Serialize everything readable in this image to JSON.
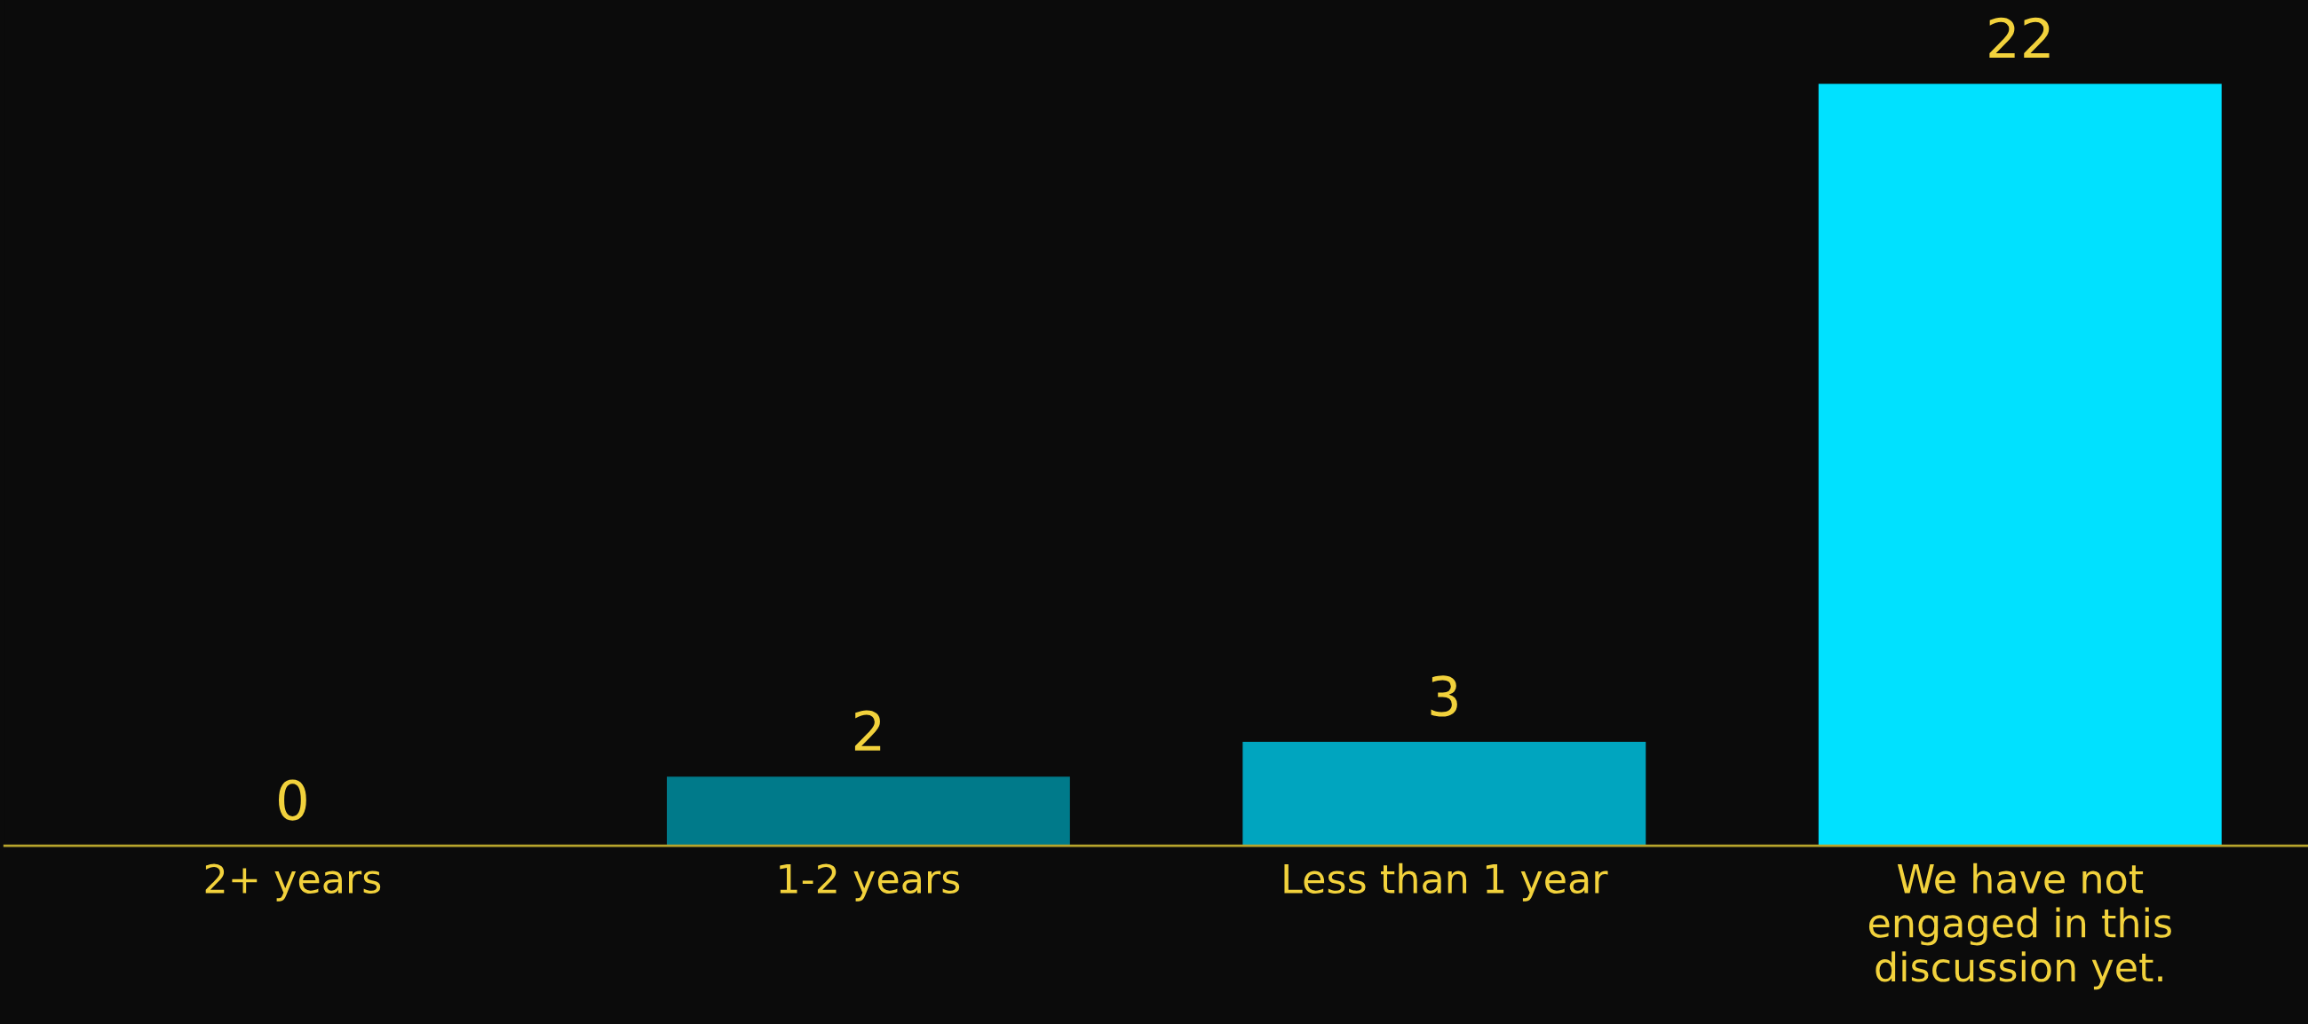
{
  "chart_data": {
    "type": "bar",
    "categories": [
      "2+ years",
      "1-2 years",
      "Less than 1 year",
      "We have not\nengaged in this\ndiscussion yet."
    ],
    "values": [
      0,
      2,
      3,
      22
    ],
    "colors": [
      "#00606c",
      "#007a8a",
      "#00a5bf",
      "#00e1ff"
    ],
    "data_labels": true,
    "grid": false,
    "legend": false
  }
}
